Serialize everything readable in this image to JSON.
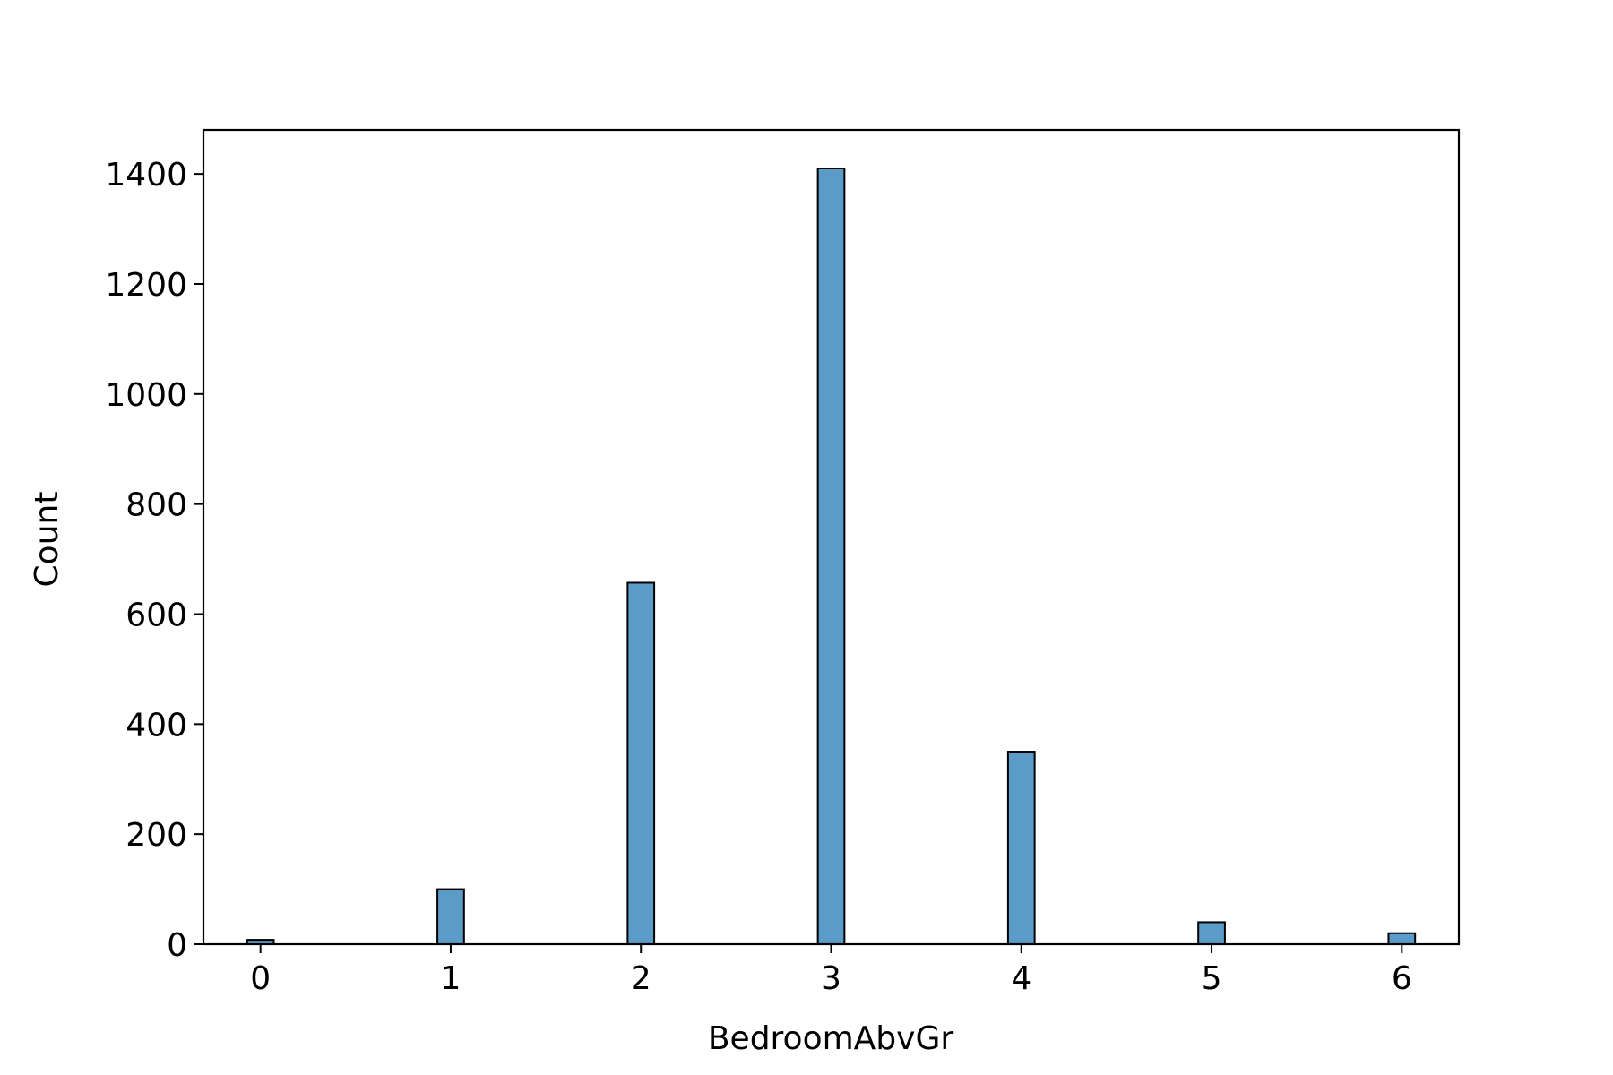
{
  "chart_data": {
    "type": "bar",
    "title": "",
    "xlabel": "BedroomAbvGr",
    "ylabel": "Count",
    "x_ticks": [
      0,
      1,
      2,
      3,
      4,
      5,
      6
    ],
    "y_ticks": [
      0,
      200,
      400,
      600,
      800,
      1000,
      1200,
      1400
    ],
    "xlim": [
      -0.3,
      6.3
    ],
    "ylim": [
      0,
      1480
    ],
    "bin_width": 0.14,
    "bars": [
      {
        "x": 0,
        "count": 8
      },
      {
        "x": 1,
        "count": 100
      },
      {
        "x": 2,
        "count": 657
      },
      {
        "x": 3,
        "count": 1410
      },
      {
        "x": 4,
        "count": 350
      },
      {
        "x": 5,
        "count": 40
      },
      {
        "x": 6,
        "count": 20
      }
    ],
    "bar_color": "#5b9bc8",
    "edge_color": "#000000",
    "grid": false,
    "legend": "none"
  }
}
